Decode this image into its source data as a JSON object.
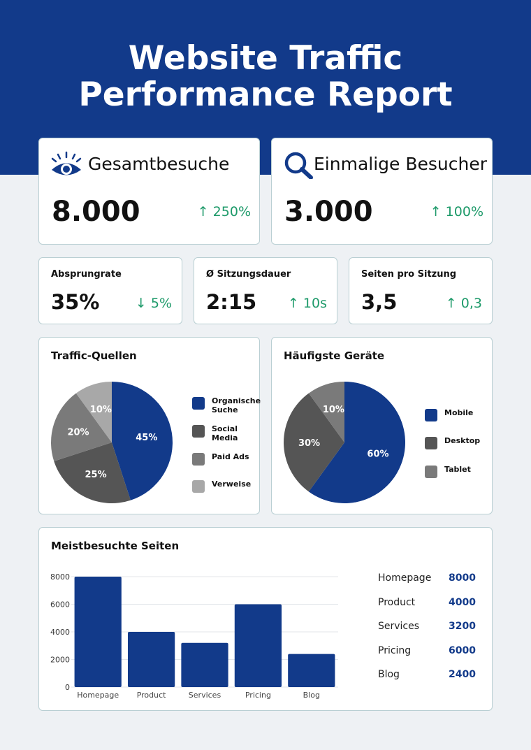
{
  "header": {
    "title_line1": "Website Traffic",
    "title_line2": "Performance Report"
  },
  "kpis": [
    {
      "label": "Gesamtbesuche",
      "icon": "eye-icon",
      "value": "8.000",
      "delta": "↑ 250%"
    },
    {
      "label": "Einmalige Besucher",
      "icon": "magnifier-icon",
      "value": "3.000",
      "delta": "↑ 100%"
    }
  ],
  "metrics": [
    {
      "label": "Absprungrate",
      "value": "35%",
      "delta": "↓ 5%"
    },
    {
      "label": "Ø Sitzungsdauer",
      "value": "2:15",
      "delta": "↑ 10s"
    },
    {
      "label": "Seiten pro Sitzung",
      "value": "3,5",
      "delta": "↑ 0,3"
    }
  ],
  "colors": {
    "brand": "#123a8a",
    "positive": "#1e9a6a"
  },
  "chart_data": [
    {
      "type": "pie",
      "title": "Traffic-Quellen",
      "categories": [
        "Organische Suche",
        "Social Media",
        "Paid Ads",
        "Verweise"
      ],
      "values": [
        45,
        25,
        20,
        10
      ],
      "labels": [
        "45%",
        "25%",
        "20%",
        "10%"
      ],
      "colors": [
        "#123a8a",
        "#555555",
        "#7a7a7a",
        "#a8a8a8"
      ],
      "legend": "right"
    },
    {
      "type": "pie",
      "title": "Häufigste Geräte",
      "categories": [
        "Mobile",
        "Desktop",
        "Tablet"
      ],
      "values": [
        60,
        30,
        10
      ],
      "labels": [
        "60%",
        "30%",
        "10%"
      ],
      "colors": [
        "#123a8a",
        "#555555",
        "#7a7a7a"
      ],
      "legend": "right"
    },
    {
      "type": "bar",
      "title": "Meistbesuchte Seiten",
      "categories": [
        "Homepage",
        "Product",
        "Services",
        "Pricing",
        "Blog"
      ],
      "values": [
        8000,
        4000,
        3200,
        6000,
        2400
      ],
      "display_values": [
        "8000",
        "4000",
        "3200",
        "6000",
        "2400"
      ],
      "ylim": [
        0,
        8000
      ],
      "yticks": [
        "0",
        "2000",
        "4000",
        "6000",
        "8000"
      ],
      "color": "#123a8a",
      "grid": true
    }
  ]
}
